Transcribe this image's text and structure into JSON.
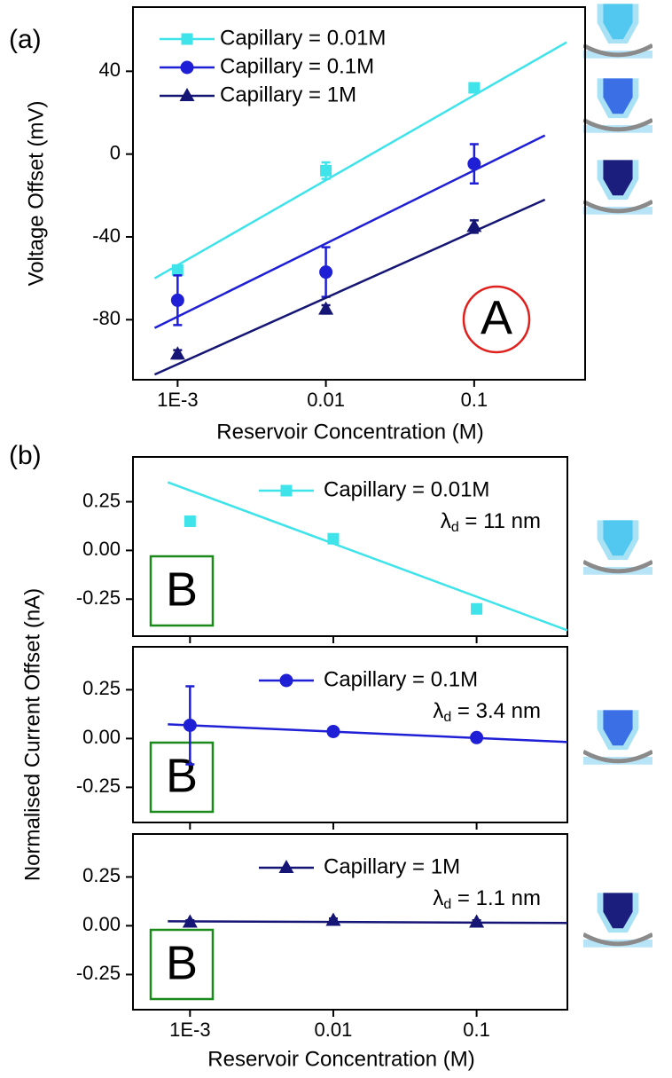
{
  "chart_data": [
    {
      "type": "scatter",
      "panel_label": "(a)",
      "annotation": "A",
      "xlabel": "Reservoir Concentration (M)",
      "ylabel": "Voltage Offset (mV)",
      "xscale": "log",
      "xlim": [
        0.0005,
        0.56
      ],
      "ylim": [
        -109,
        71
      ],
      "xticks": [
        {
          "value": 0.001,
          "label": "1E-3"
        },
        0.01,
        0.1
      ],
      "yticks": [
        -80,
        -40,
        0,
        40
      ],
      "legend": "upper left",
      "series": [
        {
          "name": "Capillary = 0.01M",
          "color": "#3fe3ea",
          "marker": "square",
          "x": [
            0.001,
            0.01,
            0.1
          ],
          "values": [
            -56,
            -8,
            32
          ],
          "errors": [
            2,
            4,
            2
          ],
          "fit_x": [
            0.0007,
            0.42
          ],
          "fit_values": [
            -60,
            54
          ]
        },
        {
          "name": "Capillary = 0.1M",
          "color": "#1f1fd6",
          "marker": "circle",
          "x": [
            0.001,
            0.01,
            0.1
          ],
          "values": [
            -70.6,
            -57,
            -4.7
          ],
          "errors": [
            12,
            12,
            9.5
          ],
          "fit_x": [
            0.0007,
            0.3
          ],
          "fit_values": [
            -84,
            9
          ]
        },
        {
          "name": "Capillary = 1M",
          "color": "#151575",
          "marker": "triangle",
          "x": [
            0.001,
            0.01,
            0.1
          ],
          "values": [
            -96.7,
            -75,
            -35
          ],
          "errors": [
            2,
            2,
            3
          ],
          "fit_x": [
            0.0007,
            0.3
          ],
          "fit_values": [
            -106.5,
            -22
          ]
        }
      ]
    },
    {
      "type": "scatter",
      "panel_label": "(b)",
      "annotation": "B",
      "ylabel": "Normalised Current Offset (nA)",
      "xscale": "log",
      "xlim": [
        0.0004,
        0.43
      ],
      "ylim": [
        -0.44,
        0.48
      ],
      "xticks": [
        0.001,
        0.01,
        0.1
      ],
      "show_xtick_labels": false,
      "yticks": [
        -0.25,
        {
          "value": 0,
          "label": "0.00"
        },
        0.25
      ],
      "legend": "upper right",
      "debye": {
        "symbol": "λ",
        "subscript": "d",
        "text": " = 11 nm"
      },
      "series": [
        {
          "name": "Capillary = 0.01M",
          "color": "#3fe3ea",
          "marker": "square",
          "x": [
            0.001,
            0.01,
            0.1
          ],
          "values": [
            0.15,
            0.06,
            -0.3
          ],
          "errors": [
            0.01,
            0.02,
            0.01
          ],
          "fit_x": [
            0.0007,
            0.43
          ],
          "fit_values": [
            0.35,
            -0.41
          ]
        }
      ]
    },
    {
      "type": "scatter",
      "annotation": "B",
      "xscale": "log",
      "xlim": [
        0.0004,
        0.43
      ],
      "ylim": [
        -0.43,
        0.47
      ],
      "xticks": [
        0.001,
        0.01,
        0.1
      ],
      "show_xtick_labels": false,
      "yticks": [
        -0.25,
        {
          "value": 0,
          "label": "0.00"
        },
        0.25
      ],
      "legend": "upper right",
      "debye": {
        "symbol": "λ",
        "subscript": "d",
        "text": " = 3.4 nm"
      },
      "series": [
        {
          "name": "Capillary = 0.1M",
          "color": "#1f1fd6",
          "marker": "circle",
          "x": [
            0.001,
            0.01,
            0.1
          ],
          "values": [
            0.068,
            0.036,
            0.005
          ],
          "errors": [
            0.2,
            0.02,
            0.005
          ],
          "fit_x": [
            0.0007,
            0.43
          ],
          "fit_values": [
            0.073,
            -0.018
          ]
        }
      ]
    },
    {
      "type": "scatter",
      "annotation": "B",
      "xlabel": "Reservoir Concentration (M)",
      "xscale": "log",
      "xlim": [
        0.0004,
        0.43
      ],
      "ylim": [
        -0.43,
        0.47
      ],
      "xticks": [
        {
          "value": 0.001,
          "label": "1E-3"
        },
        0.01,
        0.1
      ],
      "show_xtick_labels": true,
      "yticks": [
        -0.25,
        {
          "value": 0,
          "label": "0.00"
        },
        0.25
      ],
      "legend": "upper right",
      "debye": {
        "symbol": "λ",
        "subscript": "d",
        "text": " = 1.1 nm"
      },
      "series": [
        {
          "name": "Capillary = 1M",
          "color": "#151575",
          "marker": "triangle",
          "x": [
            0.001,
            0.01,
            0.1
          ],
          "values": [
            0.018,
            0.027,
            0.018
          ],
          "errors": [
            0.01,
            0.01,
            0.01
          ],
          "fit_x": [
            0.0007,
            0.43
          ],
          "fit_values": [
            0.023,
            0.014
          ]
        }
      ]
    }
  ]
}
